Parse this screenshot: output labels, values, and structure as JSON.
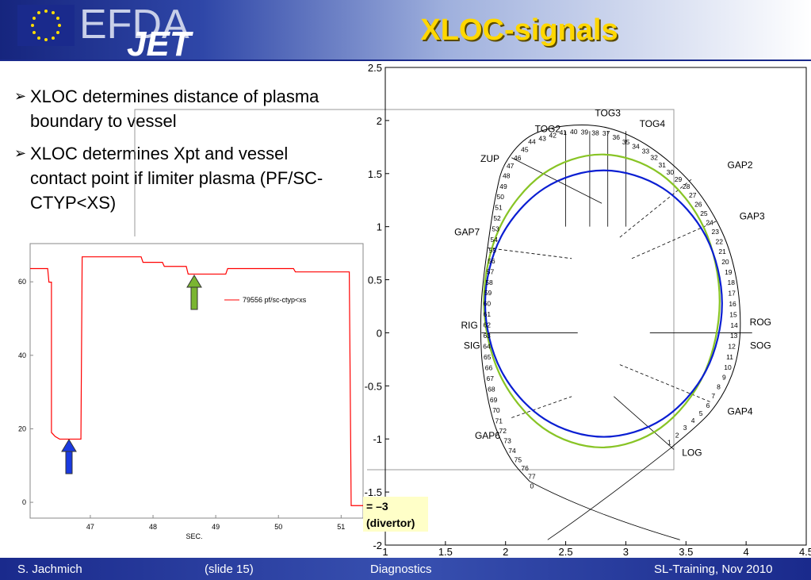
{
  "header": {
    "title": "XLOC-signals",
    "logo_top": "EFDA",
    "logo_bottom": "JET"
  },
  "bullets": [
    "XLOC determines distance of plasma boundary to vessel",
    "XLOC determines Xpt and vessel contact point if limiter plasma (PF/SC-CTYP<XS)"
  ],
  "callout": {
    "lines": [
      "= –3",
      "(divertor)"
    ]
  },
  "footer": {
    "author": "S. Jachmich",
    "slide": "(slide 15)",
    "topic": "Diagnostics",
    "event": "SL-Training, Nov 2010"
  },
  "chart_data": [
    {
      "type": "line",
      "xlabel": "SEC.",
      "x": [
        46.04,
        46.32,
        46.34,
        46.38,
        46.38,
        46.44,
        46.51,
        46.85,
        46.87,
        47.81,
        47.84,
        48.15,
        48.18,
        48.53,
        48.56,
        49.16,
        49.19,
        50.24,
        50.27,
        51.13,
        51.16,
        51.35
      ],
      "series": [
        {
          "name": "79556 pf/sc-ctyp<xs",
          "color": "#ff0000",
          "values": [
            63.6,
            63.6,
            59.9,
            59.9,
            19,
            17.9,
            17.2,
            17.2,
            66.8,
            66.8,
            65.3,
            65.3,
            64.2,
            64.2,
            62.1,
            62.1,
            63.6,
            63.6,
            62.7,
            62.7,
            -0.9,
            -0.9
          ]
        }
      ],
      "xlim": [
        46.04,
        51.35
      ],
      "ylim": [
        -4.3,
        70.4
      ],
      "xticks": [
        47,
        48,
        49,
        50,
        51
      ],
      "yticks": [
        0,
        20,
        40,
        60
      ]
    },
    {
      "type": "line",
      "series": [
        {
          "color": "#000000",
          "x": [
            3.38,
            3.7,
            3.88,
            3.95,
            3.92,
            3.8,
            3.55,
            3.2,
            2.85,
            2.5,
            2.2,
            2.0,
            1.92,
            1.85,
            1.8,
            1.8,
            1.85,
            1.92,
            2.05,
            2.2
          ],
          "values": [
            -1.08,
            -0.75,
            -0.4,
            0,
            0.5,
            0.95,
            1.4,
            1.75,
            1.93,
            1.95,
            1.85,
            1.6,
            1.3,
            0.8,
            0.3,
            -0.2,
            -0.6,
            -0.9,
            -1.2,
            -1.4
          ]
        },
        {
          "color": "#88c425",
          "x": [
            3.78,
            3.649,
            3.29,
            2.8,
            2.31,
            1.951,
            1.82,
            1.951,
            2.31,
            2.8,
            3.29,
            3.649
          ],
          "values": [
            0.3,
            0.99,
            1.495,
            1.68,
            1.495,
            0.99,
            0.3,
            -0.39,
            -0.895,
            -1.08,
            -0.895,
            -0.39
          ]
        },
        {
          "color": "#0a1ed2",
          "x": [
            3.8,
            3.668,
            3.308,
            2.815,
            2.323,
            1.962,
            1.83,
            1.962,
            2.323,
            2.815,
            3.308,
            3.668
          ],
          "values": [
            0.275,
            0.903,
            1.362,
            1.53,
            1.362,
            0.903,
            0.275,
            -0.353,
            -0.812,
            -0.98,
            -0.812,
            -0.353
          ]
        }
      ],
      "annotations": [
        "TOG2",
        "TOG3",
        "TOG4",
        "ZUP",
        "GAP2",
        "GAP3",
        "GAP7",
        "RIG",
        "SIG",
        "ROG",
        "SOG",
        "GAP4",
        "GAP6",
        "LOG"
      ],
      "point_labels": [
        0,
        1,
        2,
        3,
        4,
        5,
        6,
        7,
        8,
        9,
        10,
        11,
        12,
        13,
        14,
        15,
        16,
        17,
        18,
        19,
        20,
        21,
        22,
        23,
        24,
        25,
        26,
        27,
        28,
        29,
        30,
        31,
        32,
        33,
        34,
        35,
        36,
        37,
        38,
        39,
        40,
        41,
        42,
        43,
        44,
        45,
        46,
        47,
        48,
        49,
        50,
        51,
        52,
        53,
        54,
        55,
        56,
        57,
        58,
        59,
        60,
        61,
        62,
        63,
        64,
        65,
        66,
        67,
        68,
        69,
        70,
        71,
        72,
        73,
        74,
        75,
        76,
        77
      ],
      "xlim": [
        1,
        4.5
      ],
      "ylim": [
        -2,
        2.5
      ],
      "xticks": [
        1,
        1.5,
        2,
        2.5,
        3,
        3.5,
        4,
        4.5
      ],
      "yticks": [
        -2,
        -1.5,
        -1,
        -0.5,
        0,
        0.5,
        1,
        1.5,
        2,
        2.5
      ]
    }
  ]
}
